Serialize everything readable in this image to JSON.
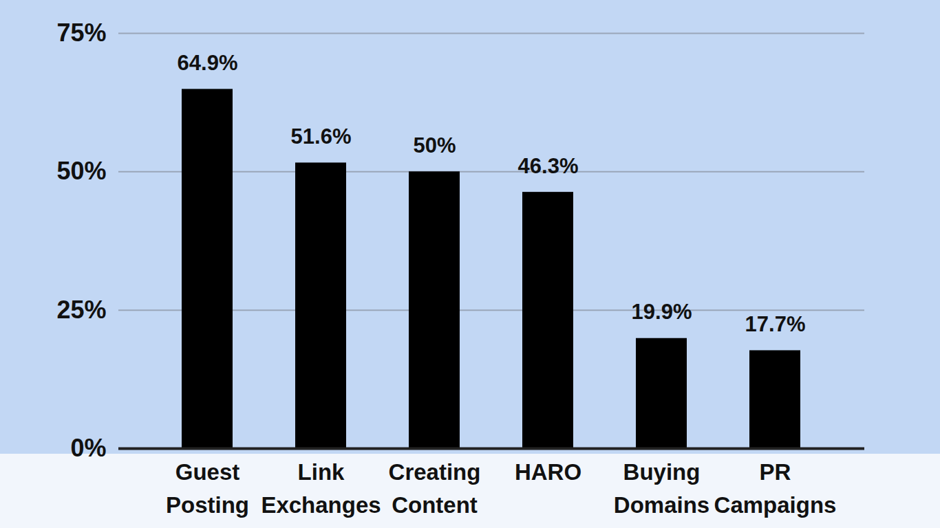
{
  "chart_data": {
    "type": "bar",
    "categories": [
      "Guest Posting",
      "Link Exchanges",
      "Creating Content",
      "HARO",
      "Buying Domains",
      "PR Campaigns"
    ],
    "values": [
      64.9,
      51.6,
      50,
      46.3,
      19.9,
      17.7
    ],
    "value_labels": [
      "64.9%",
      "51.6%",
      "50%",
      "46.3%",
      "19.9%",
      "17.7%"
    ],
    "color": "#000000",
    "ylim": [
      0,
      75
    ],
    "yticks": [
      {
        "value": 0,
        "label": "0%"
      },
      {
        "value": 25,
        "label": "25%"
      },
      {
        "value": 50,
        "label": "50%"
      },
      {
        "value": 75,
        "label": "75%"
      }
    ],
    "grid": true,
    "data_labels": true
  }
}
